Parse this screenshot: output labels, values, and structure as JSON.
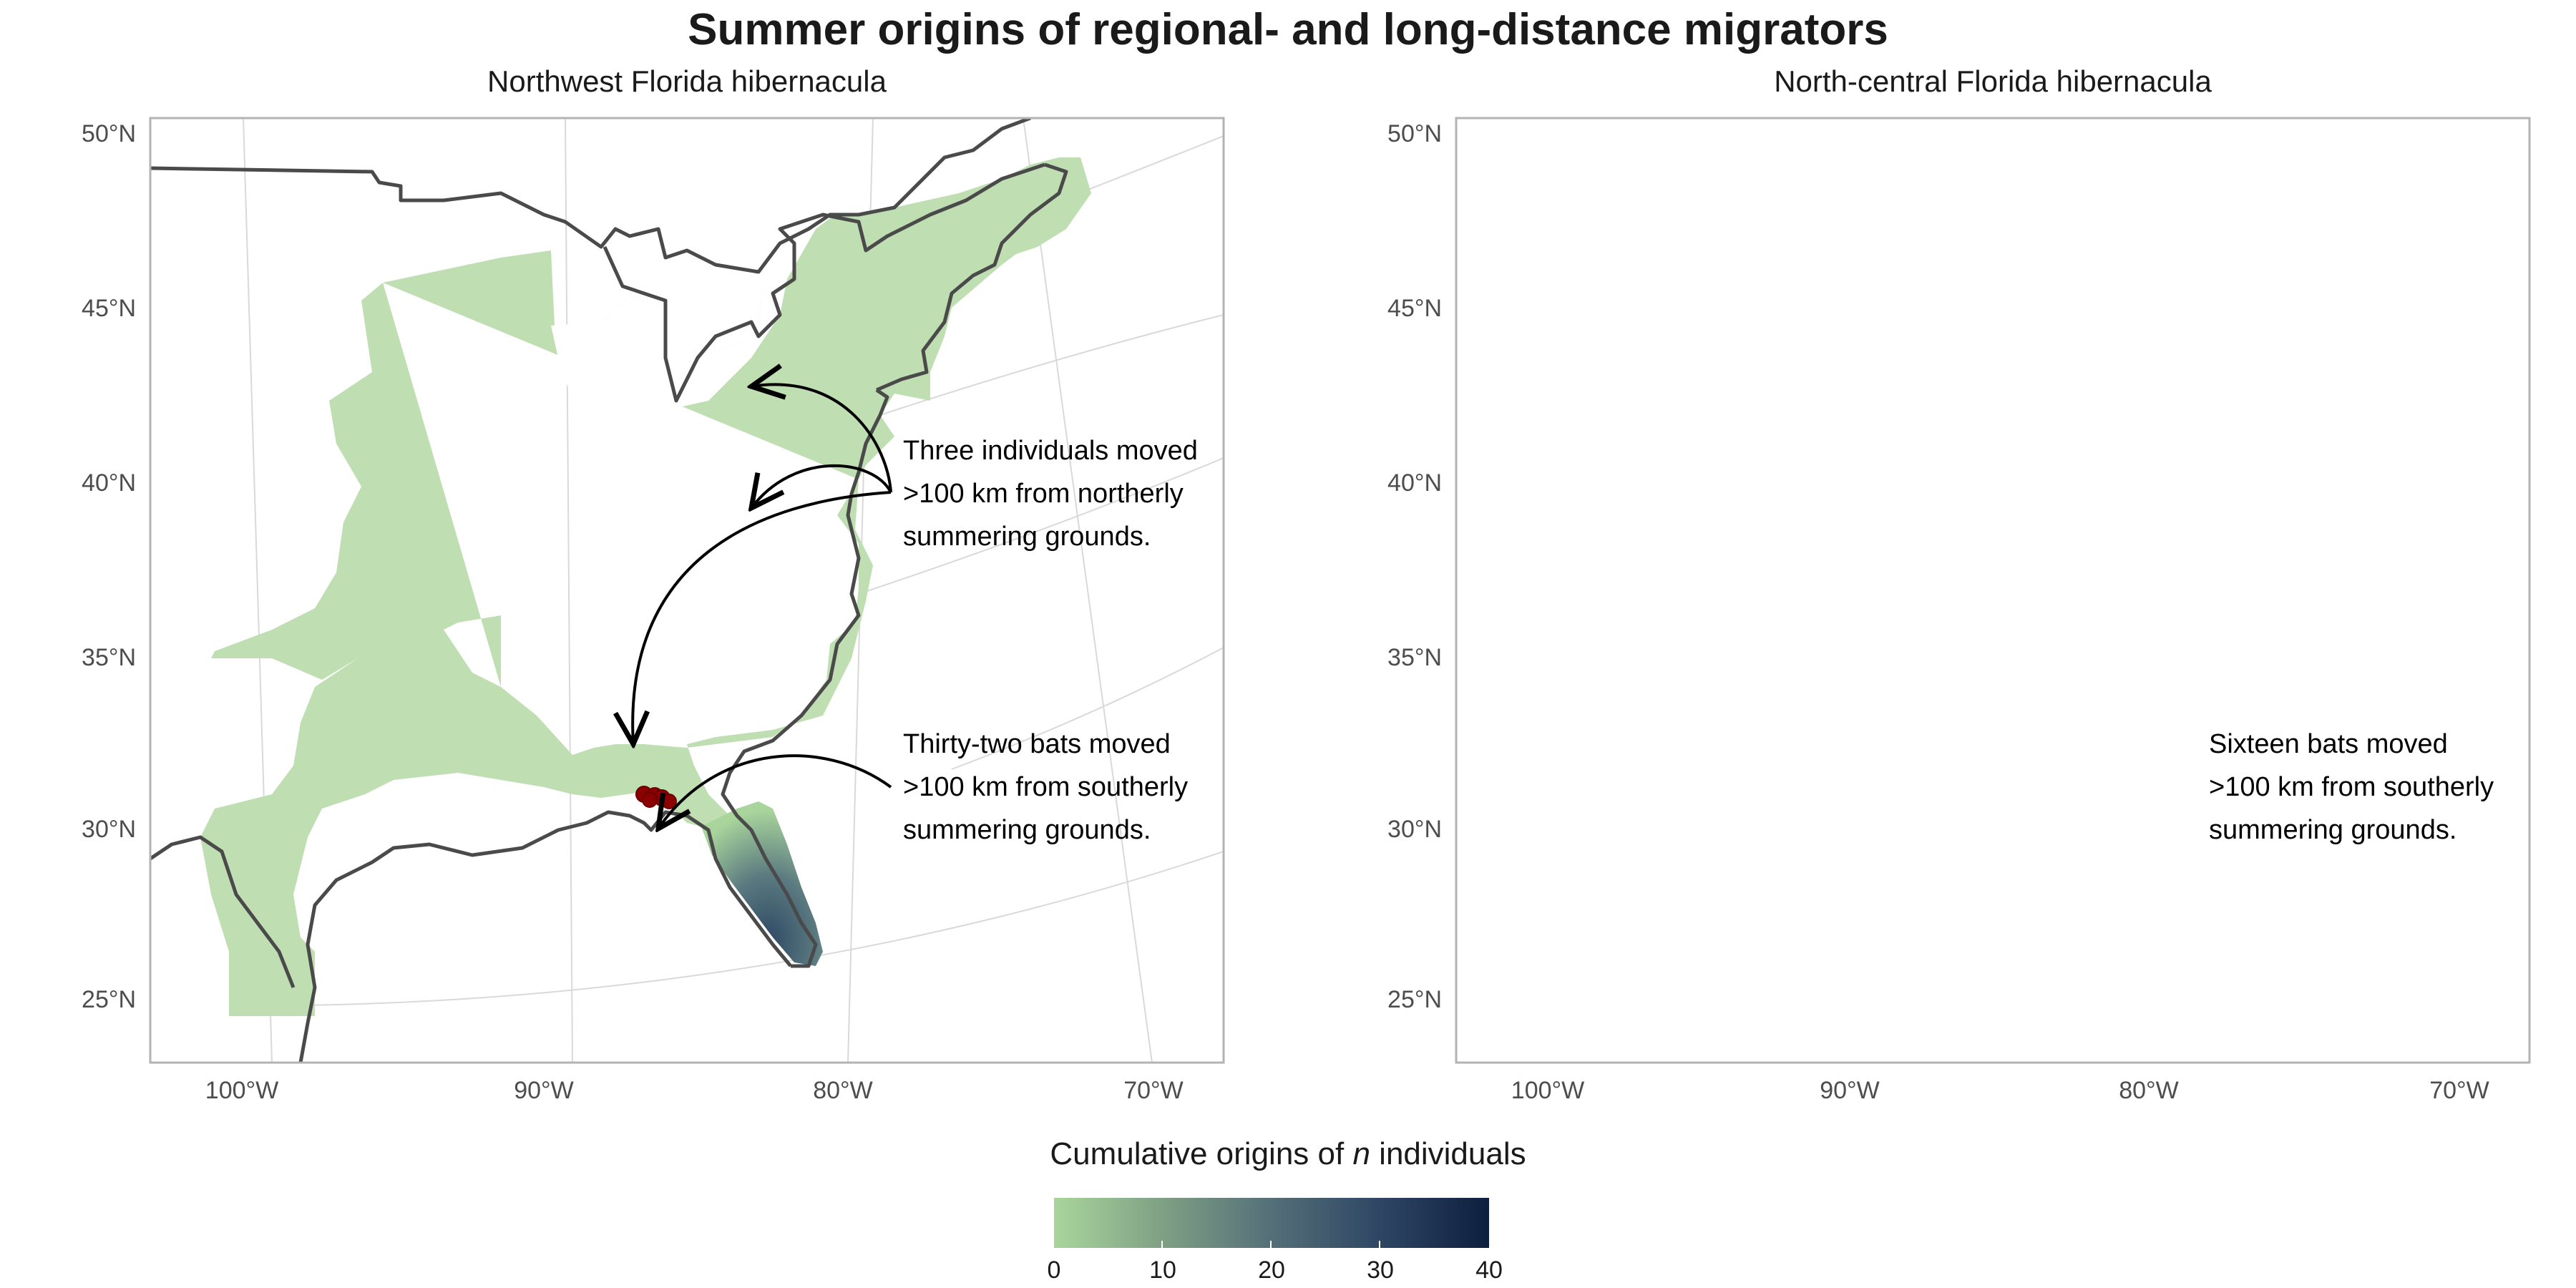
{
  "title": "Summer origins of regional- and long-distance migrators",
  "panels": [
    {
      "title": "Northwest Florida hibernacula",
      "annotations": [
        [
          "Three individuals moved",
          ">100 km from northerly",
          "summering grounds."
        ],
        [
          "Thirty-two bats moved",
          ">100 km from southerly",
          "summering grounds."
        ]
      ]
    },
    {
      "title": "North-central Florida hibernacula",
      "annotations": [
        [
          "Sixteen bats moved",
          ">100 km from southerly",
          "summering grounds."
        ]
      ]
    }
  ],
  "axes": {
    "lat_labels": [
      "50°N",
      "45°N",
      "40°N",
      "35°N",
      "30°N",
      "25°N"
    ],
    "lon_labels": [
      "100°W",
      "90°W",
      "80°W",
      "70°W"
    ]
  },
  "legend": {
    "title_prefix": "Cumulative origins of ",
    "title_var": "n",
    "title_suffix": " individuals",
    "ticks": [
      "0",
      "10",
      "20",
      "30",
      "40"
    ],
    "range": [
      0,
      40
    ],
    "low_color": "#a9d59c",
    "high_color": "#0d1f3e"
  },
  "colors": {
    "coast": "#4a4a4a",
    "points": "#8b0000",
    "grid": "#d9d9d9"
  }
}
